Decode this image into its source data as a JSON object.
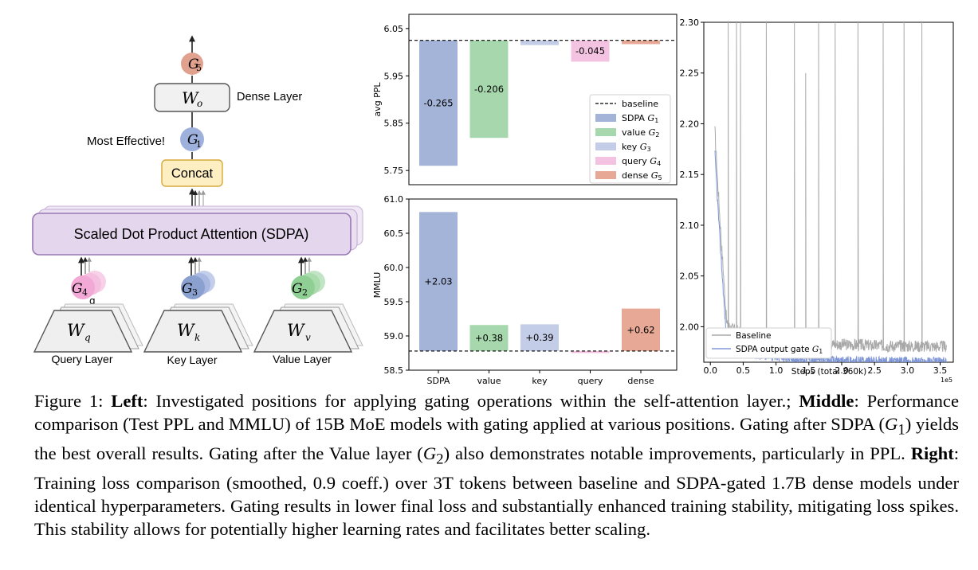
{
  "left_diagram": {
    "gates": {
      "g5": "G",
      "g1": "G",
      "g4": "G",
      "g3": "G",
      "g2": "G"
    },
    "gate_subs": {
      "g5": "5",
      "g1": "1",
      "g4": "4",
      "g3": "3",
      "g2": "2"
    },
    "gate_stray": "g",
    "wo_label": "W",
    "wo_sub": "o",
    "dense_label": "Dense Layer",
    "most_effective": "Most Effective!",
    "concat": "Concat",
    "sdpa": "Scaled Dot Product Attention (SDPA)",
    "wq": "W",
    "wq_sub": "q",
    "wk": "W",
    "wk_sub": "k",
    "wv": "W",
    "wv_sub": "v",
    "query_layer": "Query Layer",
    "key_layer": "Key Layer",
    "value_layer": "Value Layer",
    "colors": {
      "g5": "#e0a18f",
      "g1": "#9eb0dc",
      "g4": "#f2a9d6",
      "g3": "#8aa0cf",
      "g2": "#8fcf94",
      "sdpa": "#e4d6ec",
      "concat": "#fdefc2"
    }
  },
  "chart_data": [
    {
      "type": "bar",
      "title": "",
      "ylabel": "avg PPL",
      "xlabel": "",
      "categories": [
        "SDPA",
        "value",
        "key",
        "query",
        "dense"
      ],
      "baseline": 6.025,
      "values": [
        5.76,
        5.819,
        6.015,
        5.98,
        6.017
      ],
      "value_labels": [
        "-0.265",
        "-0.206",
        "",
        "-0.045",
        ""
      ],
      "ylim": [
        5.72,
        6.08
      ],
      "yticks": [
        5.75,
        5.85,
        5.95,
        6.05
      ],
      "ytick_labels": [
        "5.75",
        "5.85",
        "5.95",
        "6.05"
      ],
      "legend": {
        "position": "right",
        "entries": [
          {
            "name": "baseline",
            "style": "dashed"
          },
          {
            "name": "SDPA ",
            "gate": "G",
            "sub": "1",
            "color": "#a4b4d8"
          },
          {
            "name": "value ",
            "gate": "G",
            "sub": "2",
            "color": "#a7d8ad"
          },
          {
            "name": "key ",
            "gate": "G",
            "sub": "3",
            "color": "#c4cde8"
          },
          {
            "name": "query ",
            "gate": "G",
            "sub": "4",
            "color": "#f4c3e2"
          },
          {
            "name": "dense ",
            "gate": "G",
            "sub": "5",
            "color": "#e7a996"
          }
        ]
      },
      "colors": [
        "#a4b4d8",
        "#a7d8ad",
        "#c4cde8",
        "#f4c3e2",
        "#e7a996"
      ]
    },
    {
      "type": "bar",
      "title": "",
      "ylabel": "MMLU",
      "xlabel": "",
      "categories": [
        "SDPA",
        "value",
        "key",
        "query",
        "dense"
      ],
      "baseline": 58.78,
      "values": [
        60.81,
        59.16,
        59.17,
        58.75,
        59.4
      ],
      "value_labels": [
        "+2.03",
        "+0.38",
        "+0.39",
        "",
        "+0.62"
      ],
      "ylim": [
        58.5,
        61.0
      ],
      "yticks": [
        58.5,
        59.0,
        59.5,
        60.0,
        60.5,
        61.0
      ],
      "ytick_labels": [
        "58.5",
        "59.0",
        "59.5",
        "60.0",
        "60.5",
        "61.0"
      ],
      "colors": [
        "#a4b4d8",
        "#a7d8ad",
        "#c4cde8",
        "#f4c3e2",
        "#e7a996"
      ]
    },
    {
      "type": "line",
      "title": "",
      "xlabel": "Steps (total 360k)",
      "ylabel": "",
      "x_multiplier": "1e5",
      "xlim": [
        -0.1,
        3.7
      ],
      "ylim": [
        1.965,
        2.3
      ],
      "xticks": [
        0.0,
        0.5,
        1.0,
        1.5,
        2.0,
        2.5,
        3.0,
        3.5
      ],
      "xtick_labels": [
        "0.0",
        "0.5",
        "1.0",
        "1.5",
        "2.0",
        "2.5",
        "3.0",
        "3.5"
      ],
      "yticks": [
        2.0,
        2.05,
        2.1,
        2.15,
        2.2,
        2.25,
        2.3
      ],
      "ytick_labels": [
        "2.00",
        "2.05",
        "2.10",
        "2.15",
        "2.20",
        "2.25",
        "2.30"
      ],
      "legend": {
        "position": "lower-left",
        "entries": [
          "Baseline",
          "SDPA output gate "
        ],
        "gate": "G",
        "sub": "1"
      },
      "series": [
        {
          "name": "Baseline",
          "color": "#a8a8a8",
          "x0": 0.07,
          "x1": 3.6,
          "a": 0.046,
          "c": 1.97,
          "y_end": 1.98,
          "spikes": [
            [
              0.27,
              2.3
            ],
            [
              0.4,
              2.3
            ],
            [
              0.46,
              2.3
            ],
            [
              0.85,
              2.3
            ],
            [
              1.28,
              2.3
            ],
            [
              1.45,
              2.25
            ],
            [
              1.65,
              2.3
            ],
            [
              1.9,
              2.3
            ],
            [
              2.25,
              2.3
            ],
            [
              2.63,
              2.3
            ],
            [
              2.95,
              2.3
            ],
            [
              3.22,
              2.3
            ]
          ]
        },
        {
          "name": "SDPA output gate G1",
          "color": "#7f97d6",
          "x0": 0.07,
          "x1": 3.6,
          "a": 0.04,
          "c": 1.955,
          "y_end": 1.972,
          "spikes": []
        }
      ]
    }
  ],
  "caption": {
    "fig": "Figure 1: ",
    "left_b": "Left",
    "left_t": ": Investigated positions for applying gating operations within the self-attention layer.; ",
    "mid_b": "Middle",
    "mid_t1": ": Performance comparison (Test PPL and MMLU) of 15B MoE models with gating applied at various positions. Gating after SDPA (",
    "g": "G",
    "s1": "1",
    "mid_t2": ") yields the best overall results. Gating after the Value layer (",
    "s2": "2",
    "mid_t3": ") also demonstrates notable improvements, particularly in PPL. ",
    "right_b": "Right",
    "right_t": ": Training loss comparison (smoothed, 0.9 coeff.) over 3T tokens between baseline and SDPA-gated 1.7B dense models under identical hyperparameters. Gating results in lower final loss and substantially enhanced training stability, mitigating loss spikes. This stability allows for potentially higher learning rates and facilitates better scaling."
  }
}
